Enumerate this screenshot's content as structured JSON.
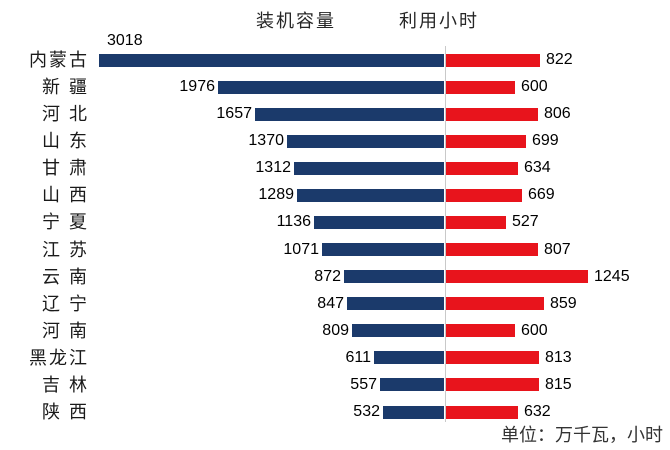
{
  "chart_data": {
    "type": "bar",
    "subtype": "diverging-horizontal",
    "title": "",
    "categories": [
      "内蒙古",
      "新疆",
      "河北",
      "山东",
      "甘肃",
      "山西",
      "宁夏",
      "江苏",
      "云南",
      "辽宁",
      "河南",
      "黑龙江",
      "吉林",
      "陕西"
    ],
    "display_labels": [
      "内蒙古",
      "新 疆",
      "河 北",
      "山 东",
      "甘 肃",
      "山 西",
      "宁 夏",
      "江 苏",
      "云 南",
      "辽 宁",
      "河 南",
      "黑龙江",
      "吉 林",
      "陕 西"
    ],
    "series": [
      {
        "name": "装机容量",
        "side": "left",
        "color": "#1B3A6B",
        "values": [
          3018,
          1976,
          1657,
          1370,
          1312,
          1289,
          1136,
          1071,
          872,
          847,
          809,
          611,
          557,
          532
        ]
      },
      {
        "name": "利用小时",
        "side": "right",
        "color": "#E8141C",
        "values": [
          822,
          600,
          806,
          699,
          634,
          669,
          527,
          807,
          1245,
          859,
          600,
          813,
          815,
          632
        ]
      }
    ],
    "unit_note": "单位：万千瓦，小时",
    "legend_position": "top",
    "axis": {
      "center_line_color": "#C9C9C9",
      "shared_scale": true,
      "left_max": 3018,
      "right_max": 1245
    }
  }
}
